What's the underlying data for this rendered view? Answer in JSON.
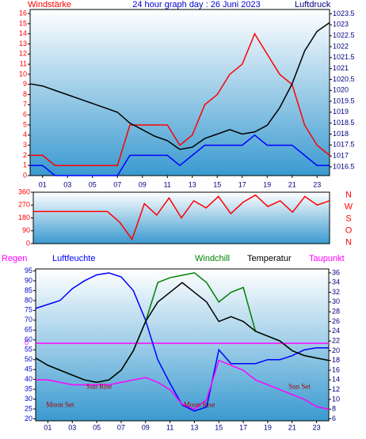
{
  "chart_data": [
    {
      "type": "line",
      "title": "24 hour graph day : 26 Juni 2023",
      "y_label": "Windstärke",
      "y2_label": "Luftdruck",
      "x": [
        0,
        1,
        2,
        3,
        4,
        5,
        6,
        7,
        8,
        9,
        10,
        11,
        12,
        13,
        14,
        15,
        16,
        17,
        18,
        19,
        20,
        21,
        22,
        23,
        24
      ],
      "xlim": [
        0,
        24
      ],
      "xticks": [
        {
          "value": 1,
          "label": "01"
        },
        {
          "value": 3,
          "label": "03"
        },
        {
          "value": 5,
          "label": "05"
        },
        {
          "value": 7,
          "label": "07"
        },
        {
          "value": 9,
          "label": "09"
        },
        {
          "value": 11,
          "label": "11"
        },
        {
          "value": 13,
          "label": "13"
        },
        {
          "value": 15,
          "label": "15"
        },
        {
          "value": 17,
          "label": "17"
        },
        {
          "value": 19,
          "label": "19"
        },
        {
          "value": 21,
          "label": "21"
        },
        {
          "value": 23,
          "label": "23"
        }
      ],
      "ylim": [
        0,
        16.4
      ],
      "yticks": [
        0,
        1,
        2,
        3,
        4,
        5,
        6,
        7,
        8,
        9,
        10,
        11,
        12,
        13,
        14,
        15,
        16
      ],
      "y2lim": [
        1016.1,
        1023.7
      ],
      "y2ticks": [
        1016.5,
        1017,
        1017.5,
        1018,
        1018.5,
        1019,
        1019.5,
        1020,
        1020.5,
        1021,
        1021.5,
        1022,
        1022.5,
        1023,
        1023.5
      ],
      "series": [
        {
          "color": "#ff0000",
          "values": [
            2,
            2,
            1,
            1,
            1,
            1,
            1,
            1,
            5,
            5,
            5,
            5,
            3,
            4,
            7,
            8,
            10,
            11,
            14,
            12,
            10,
            9,
            5,
            3,
            2
          ]
        },
        {
          "color": "#0000ff",
          "values": [
            1,
            1,
            0,
            0,
            0,
            0,
            0,
            0,
            2,
            2,
            2,
            2,
            1,
            2,
            3,
            3,
            3,
            3,
            4,
            3,
            3,
            3,
            2,
            1,
            1
          ]
        },
        {
          "color": "#000000",
          "axis": "y2",
          "values": [
            1020.3,
            1020.2,
            1020,
            1019.8,
            1019.6,
            1019.4,
            1019.2,
            1019,
            1018.5,
            1018.2,
            1017.9,
            1017.7,
            1017.3,
            1017.4,
            1017.8,
            1018,
            1018.2,
            1018,
            1018.1,
            1018.4,
            1019.2,
            1020.3,
            1021.8,
            1022.7,
            1023.1
          ]
        }
      ]
    },
    {
      "type": "line",
      "x": [
        0,
        1,
        2,
        3,
        4,
        5,
        6,
        7,
        8,
        9,
        10,
        11,
        12,
        13,
        14,
        15,
        16,
        17,
        18,
        19,
        20,
        21,
        22,
        23,
        24
      ],
      "xlim": [
        0,
        24
      ],
      "ylim": [
        0,
        360
      ],
      "yticks": [
        0,
        90,
        180,
        270,
        360
      ],
      "y2ticks": [
        "N",
        "W",
        "S",
        "O",
        "N"
      ],
      "series": [
        {
          "color": "#ff0000",
          "values": [
            225,
            225,
            225,
            225,
            225,
            225,
            225,
            150,
            30,
            280,
            200,
            320,
            180,
            300,
            250,
            330,
            210,
            290,
            340,
            260,
            300,
            220,
            330,
            270,
            300
          ]
        }
      ]
    },
    {
      "type": "line",
      "x": [
        0,
        1,
        2,
        3,
        4,
        5,
        6,
        7,
        8,
        9,
        10,
        11,
        12,
        13,
        14,
        15,
        16,
        17,
        18,
        19,
        20,
        21,
        22,
        23,
        24
      ],
      "xlim": [
        0,
        24
      ],
      "xticks": [
        {
          "value": 1,
          "label": "01"
        },
        {
          "value": 3,
          "label": "03"
        },
        {
          "value": 5,
          "label": "05"
        },
        {
          "value": 7,
          "label": "07"
        },
        {
          "value": 9,
          "label": "09"
        },
        {
          "value": 11,
          "label": "11"
        },
        {
          "value": 13,
          "label": "13"
        },
        {
          "value": 15,
          "label": "15"
        },
        {
          "value": 17,
          "label": "17"
        },
        {
          "value": 19,
          "label": "19"
        },
        {
          "value": 21,
          "label": "21"
        },
        {
          "value": 23,
          "label": "23"
        }
      ],
      "ylim": [
        19,
        96
      ],
      "yticks": [
        20,
        25,
        30,
        35,
        40,
        45,
        50,
        55,
        60,
        65,
        70,
        75,
        80,
        85,
        90,
        95
      ],
      "y2lim": [
        5.6,
        36.8
      ],
      "y2ticks": [
        6,
        8,
        10,
        12,
        14,
        16,
        18,
        20,
        22,
        24,
        26,
        28,
        30,
        32,
        34,
        36
      ],
      "rain_label": "Regen",
      "rain_tick": "0",
      "series": [
        {
          "name": "Luftfeuchte",
          "color": "#0000ff",
          "values": [
            76,
            78,
            80,
            86,
            90,
            93,
            94,
            92,
            85,
            70,
            50,
            38,
            27,
            24,
            26,
            55,
            48,
            48,
            48,
            50,
            50,
            52,
            55,
            56,
            56
          ]
        },
        {
          "name": "Windchill",
          "color": "#008000",
          "axis": "y2",
          "values": [
            18.5,
            17,
            16,
            15,
            14,
            13.5,
            14,
            16,
            20,
            26,
            34,
            35,
            35.5,
            36,
            34,
            30,
            32,
            33,
            24,
            23,
            22,
            20,
            19,
            18.5,
            18
          ]
        },
        {
          "name": "Temperatur",
          "color": "#000000",
          "axis": "y2",
          "values": [
            18.5,
            17,
            16,
            15,
            14,
            13.5,
            14,
            16,
            20,
            26,
            30,
            32,
            34,
            32,
            30,
            26,
            27,
            26,
            24,
            23,
            22,
            20,
            19,
            18.5,
            18
          ]
        },
        {
          "name": "Taupunkt",
          "color": "#ff00ff",
          "axis": "y2",
          "values": [
            14,
            14,
            13.5,
            13,
            13,
            13,
            13,
            13.5,
            14,
            14.5,
            13.5,
            12,
            9,
            8,
            10,
            18,
            17,
            16,
            14,
            13,
            12,
            11,
            10,
            8.5,
            8
          ]
        }
      ],
      "annotations": [
        {
          "text": "Sun Rise",
          "x": 5.2,
          "y": 12.5
        },
        {
          "text": "Sun Set",
          "x": 21.6,
          "y": 12.5
        },
        {
          "text": "Moon Set",
          "x": 2,
          "y": 8.8
        },
        {
          "text": "Moon Rise",
          "x": 13.4,
          "y": 8.8
        }
      ]
    }
  ]
}
